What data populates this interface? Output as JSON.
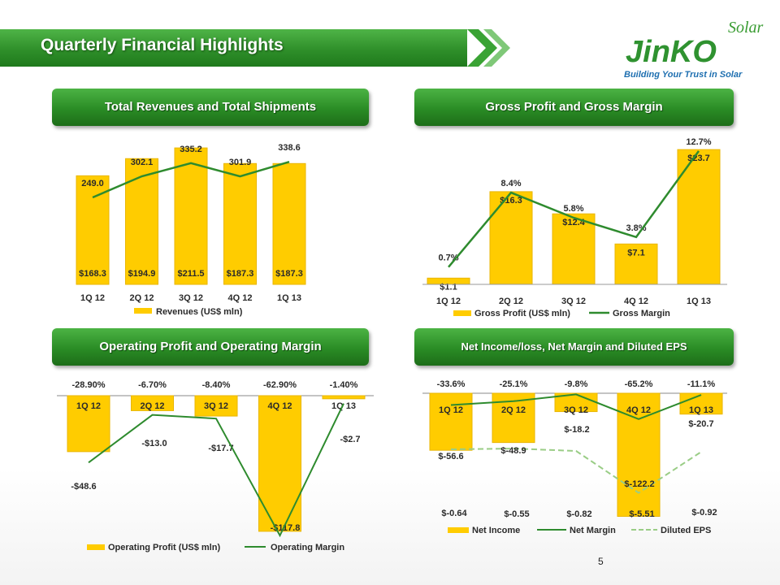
{
  "page": {
    "title": "Quarterly Financial Highlights",
    "page_number": "5"
  },
  "logo": {
    "word": "JinKO",
    "script": "Solar",
    "tagline": "Building Your Trust in Solar"
  },
  "sections": {
    "revenues": "Total Revenues and Total Shipments",
    "gross": "Gross Profit and Gross Margin",
    "operating": "Operating Profit and Operating Margin",
    "net": "Net Income/loss,  Net Margin and Diluted EPS"
  },
  "colors": {
    "bar": "#FFCC00",
    "line": "#2E8B2E",
    "dash": "#9ACD86",
    "header": "#2A8C25"
  },
  "chart_data": [
    {
      "type": "bar",
      "categories": [
        "1Q 12",
        "2Q 12",
        "3Q 12",
        "4Q 12",
        "1Q 13"
      ],
      "values": [
        168.3,
        194.9,
        211.5,
        187.3,
        187.3
      ],
      "value_labels": [
        "$168.3",
        "$194.9",
        "$211.5",
        "$187.3",
        "$187.3"
      ],
      "line_values": [
        249.0,
        302.1,
        335.2,
        301.9,
        338.6
      ],
      "line_labels": [
        "249.0",
        "302.1",
        "335.2",
        "301.9",
        "338.6"
      ],
      "legend": [
        "Revenues (US$ mln)"
      ]
    },
    {
      "type": "bar",
      "categories": [
        "1Q 12",
        "2Q 12",
        "3Q 12",
        "4Q 12",
        "1Q 13"
      ],
      "values": [
        1.1,
        16.3,
        12.4,
        7.1,
        23.7
      ],
      "value_labels": [
        "$1.1",
        "$16.3",
        "$12.4",
        "$7.1",
        "$23.7"
      ],
      "line_values": [
        0.7,
        8.4,
        5.8,
        3.8,
        12.7
      ],
      "line_labels": [
        "0.7%",
        "8.4%",
        "5.8%",
        "3.8%",
        "12.7%"
      ],
      "legend": [
        "Gross Profit (US$ mln)",
        "Gross Margin"
      ]
    },
    {
      "type": "bar",
      "categories": [
        "1Q 12",
        "2Q 12",
        "3Q 12",
        "4Q 12",
        "1Q 13"
      ],
      "category_labels": [
        "1Q 12",
        "2Q 12",
        "3Q 12",
        "4Q 12",
        "1Q 13"
      ],
      "values": [
        -48.6,
        -13.0,
        -17.7,
        -117.8,
        -2.7
      ],
      "value_labels": [
        "-$48.6",
        "-$13.0",
        "-$17.7",
        "-$117.8",
        "-$2.7"
      ],
      "line_values": [
        -28.9,
        -6.7,
        -8.4,
        -62.9,
        -1.4
      ],
      "line_labels": [
        "-28.90%",
        "-6.70%",
        "-8.40%",
        "-62.90%",
        "-1.40%"
      ],
      "legend": [
        "Operating Profit (US$ mln)",
        "Operating Margin"
      ]
    },
    {
      "type": "bar",
      "categories": [
        "1Q 12",
        "2Q 12",
        "3Q 12",
        "4Q 12",
        "1Q 13"
      ],
      "values": [
        -56.6,
        -48.9,
        -18.2,
        -122.2,
        -20.7
      ],
      "value_labels": [
        "$-56.6",
        "$-48.9",
        "$-18.2",
        "$-122.2",
        "$-20.7"
      ],
      "line_values": [
        -33.6,
        -25.1,
        -9.8,
        -65.2,
        -11.1
      ],
      "line_labels": [
        "-33.6%",
        "-25.1%",
        "-9.8%",
        "-65.2%",
        "-11.1%"
      ],
      "eps_values": [
        -0.64,
        -0.55,
        -0.82,
        -5.51,
        -0.92
      ],
      "eps_labels": [
        "$-0.64",
        "$-0.55",
        "$-0.82",
        "$-5.51",
        "$-0.92"
      ],
      "legend": [
        "Net Income",
        "Net Margin",
        "Diluted EPS"
      ]
    }
  ]
}
